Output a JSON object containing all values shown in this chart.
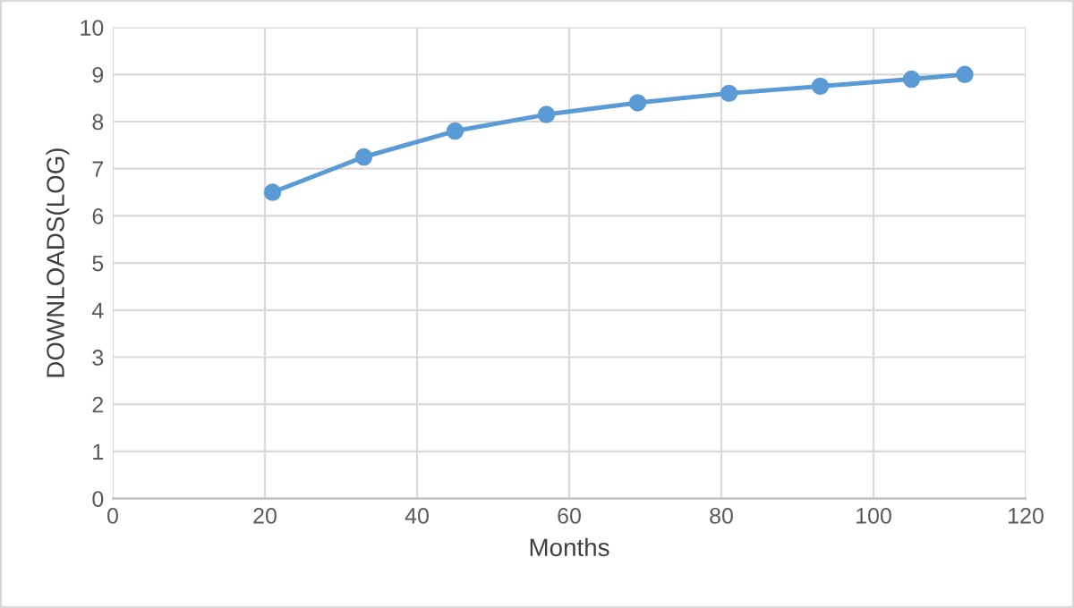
{
  "chart_data": {
    "type": "line",
    "xlabel": "Months",
    "ylabel": "DOWNLOADS(LOG)",
    "x": [
      21,
      33,
      45,
      57,
      69,
      81,
      93,
      105,
      112
    ],
    "series": [
      {
        "color": "#5b9bd5",
        "values": [
          6.5,
          7.25,
          7.8,
          8.15,
          8.4,
          8.6,
          8.75,
          8.9,
          9.0
        ]
      }
    ],
    "xlim": [
      0,
      120
    ],
    "xticks": [
      0,
      20,
      40,
      60,
      80,
      100,
      120
    ],
    "ylim": [
      0,
      10
    ],
    "yticks": [
      0,
      1,
      2,
      3,
      4,
      5,
      6,
      7,
      8,
      9,
      10
    ],
    "grid": true,
    "marker": "circle",
    "line_style": "solid"
  }
}
